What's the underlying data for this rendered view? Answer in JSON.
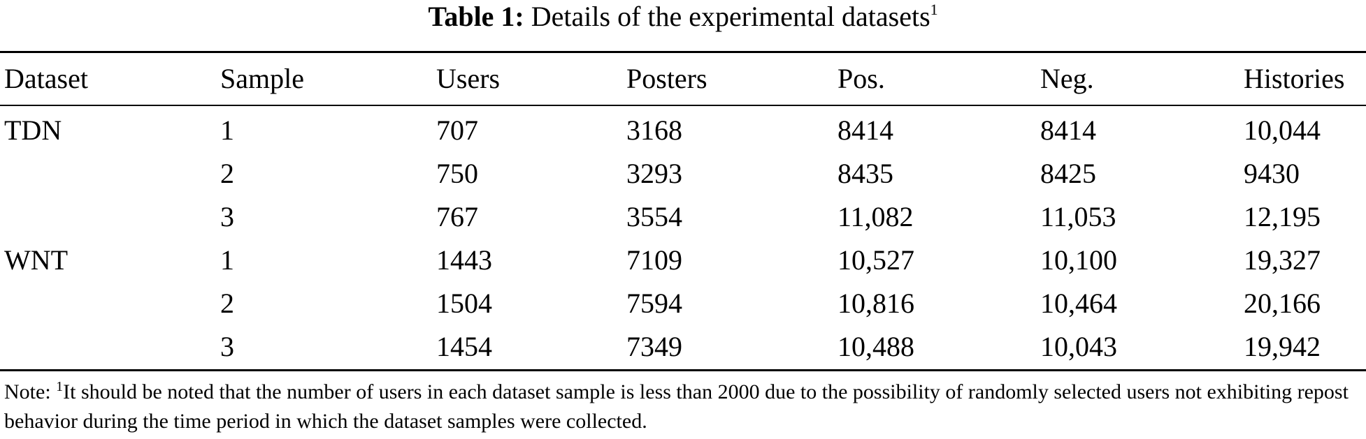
{
  "caption": {
    "label": "Table 1:",
    "text": "Details of the experimental datasets",
    "footnote_mark": "1"
  },
  "columns": [
    "Dataset",
    "Sample",
    "Users",
    "Posters",
    "Pos.",
    "Neg.",
    "Histories"
  ],
  "rows": [
    [
      "TDN",
      "1",
      "707",
      "3168",
      "8414",
      "8414",
      "10,044"
    ],
    [
      "",
      "2",
      "750",
      "3293",
      "8435",
      "8425",
      "9430"
    ],
    [
      "",
      "3",
      "767",
      "3554",
      "11,082",
      "11,053",
      "12,195"
    ],
    [
      "WNT",
      "1",
      "1443",
      "7109",
      "10,527",
      "10,100",
      "19,327"
    ],
    [
      "",
      "2",
      "1504",
      "7594",
      "10,816",
      "10,464",
      "20,166"
    ],
    [
      "",
      "3",
      "1454",
      "7349",
      "10,488",
      "10,043",
      "19,942"
    ]
  ],
  "note": {
    "prefix": "Note:",
    "mark": "1",
    "text": "It should be noted that the number of users in each dataset sample is less than 2000 due to the possibility of randomly selected users not exhibiting repost behavior during the time period in which the dataset samples were collected."
  }
}
